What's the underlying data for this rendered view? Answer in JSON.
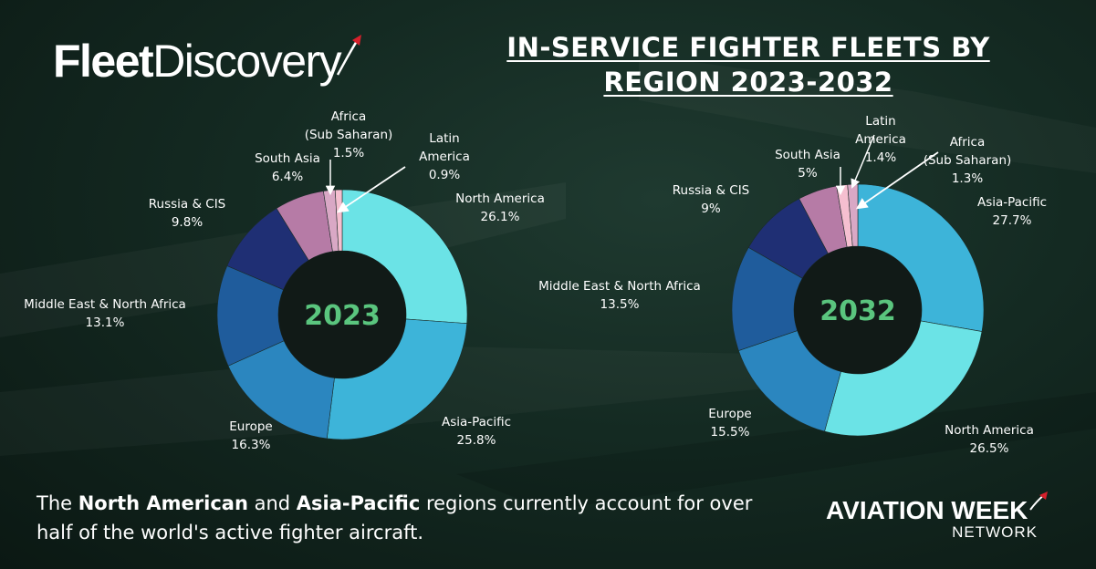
{
  "brand": {
    "fleet_logo_bold": "Fleet",
    "fleet_logo_thin": "Discovery",
    "aw_logo_main": "AVIATION WEEK",
    "aw_logo_sub": "NETWORK"
  },
  "title_line1": "IN-SERVICE FIGHTER FLEETS BY",
  "title_line2": "REGION 2023-2032",
  "caption": {
    "part1": "The ",
    "bold1": "North American",
    "part2": " and ",
    "bold2": "Asia-Pacific",
    "part3": " regions currently account for over half of the world's active fighter aircraft."
  },
  "colors": {
    "accent_red": "#d6202b",
    "center_text": "#5ac57e",
    "North America": "#6be3e6",
    "Asia-Pacific": "#3db4d9",
    "Europe": "#2b86bf",
    "Middle East & North Africa": "#1f5c9c",
    "Russia & CIS": "#1f2f74",
    "South Asia": "#b67ba6",
    "Africa (Sub Saharan)": "#d9a8c5",
    "Latin America": "#f5bfd0"
  },
  "chart_data": [
    {
      "type": "pie",
      "donut": true,
      "center_label": "2023",
      "slices": [
        {
          "label": "North America",
          "value": 26.1,
          "display": "26.1%"
        },
        {
          "label": "Asia-Pacific",
          "value": 25.8,
          "display": "25.8%"
        },
        {
          "label": "Europe",
          "value": 16.3,
          "display": "16.3%"
        },
        {
          "label": "Middle East & North Africa",
          "value": 13.1,
          "display": "13.1%"
        },
        {
          "label": "Russia & CIS",
          "value": 9.8,
          "display": "9.8%"
        },
        {
          "label": "South Asia",
          "value": 6.4,
          "display": "6.4%"
        },
        {
          "label": "Africa (Sub Saharan)",
          "value": 1.5,
          "display": "1.5%"
        },
        {
          "label": "Latin America",
          "value": 0.9,
          "display": "0.9%"
        }
      ]
    },
    {
      "type": "pie",
      "donut": true,
      "center_label": "2032",
      "slices": [
        {
          "label": "Asia-Pacific",
          "value": 27.7,
          "display": "27.7%"
        },
        {
          "label": "North America",
          "value": 26.5,
          "display": "26.5%"
        },
        {
          "label": "Europe",
          "value": 15.5,
          "display": "15.5%"
        },
        {
          "label": "Middle East & North Africa",
          "value": 13.5,
          "display": "13.5%"
        },
        {
          "label": "Russia & CIS",
          "value": 9,
          "display": "9%"
        },
        {
          "label": "South Asia",
          "value": 5,
          "display": "5%"
        },
        {
          "label": "Latin America",
          "value": 1.4,
          "display": "1.4%"
        },
        {
          "label": "Africa (Sub Saharan)",
          "value": 1.3,
          "display": "1.3%"
        }
      ]
    }
  ]
}
